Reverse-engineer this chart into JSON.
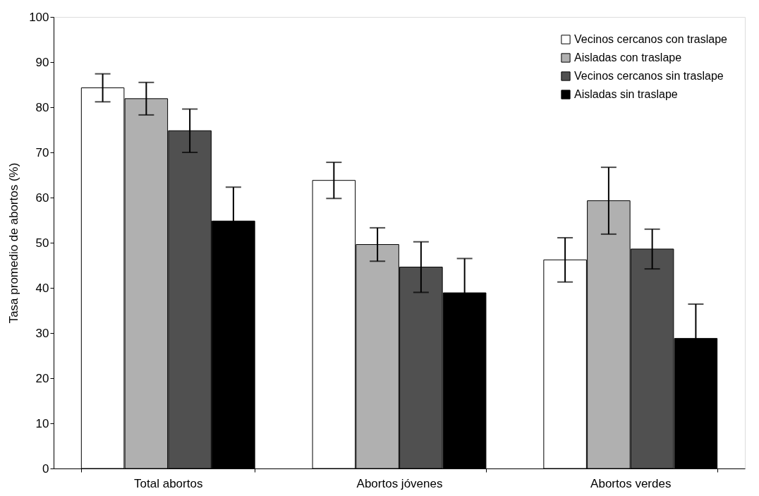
{
  "chart_data": {
    "type": "bar",
    "ylabel": "Tasa promedio de abortos (%)",
    "categories": [
      "Total abortos",
      "Abortos jóvenes",
      "Abortos verdes"
    ],
    "series": [
      {
        "name": "Vecinos cercanos con traslape",
        "color": "#ffffff",
        "values": [
          84.3,
          63.8,
          46.2
        ],
        "errors": [
          3.1,
          4.0,
          4.9
        ]
      },
      {
        "name": "Aisladas con traslape",
        "color": "#b0b0b0",
        "values": [
          81.9,
          49.6,
          59.3
        ],
        "errors": [
          3.6,
          3.7,
          7.4
        ]
      },
      {
        "name": "Vecinos cercanos sin traslape",
        "color": "#505050",
        "values": [
          74.8,
          44.6,
          48.6
        ],
        "errors": [
          4.8,
          5.6,
          4.4
        ]
      },
      {
        "name": "Aisladas sin traslape",
        "color": "#000000",
        "values": [
          54.8,
          38.9,
          28.8
        ],
        "errors": [
          7.5,
          7.6,
          7.6
        ]
      }
    ],
    "ylim": [
      0,
      100
    ],
    "yticks": [
      0,
      10,
      20,
      30,
      40,
      50,
      60,
      70,
      80,
      90,
      100
    ],
    "grid": false,
    "legend": "top right"
  }
}
